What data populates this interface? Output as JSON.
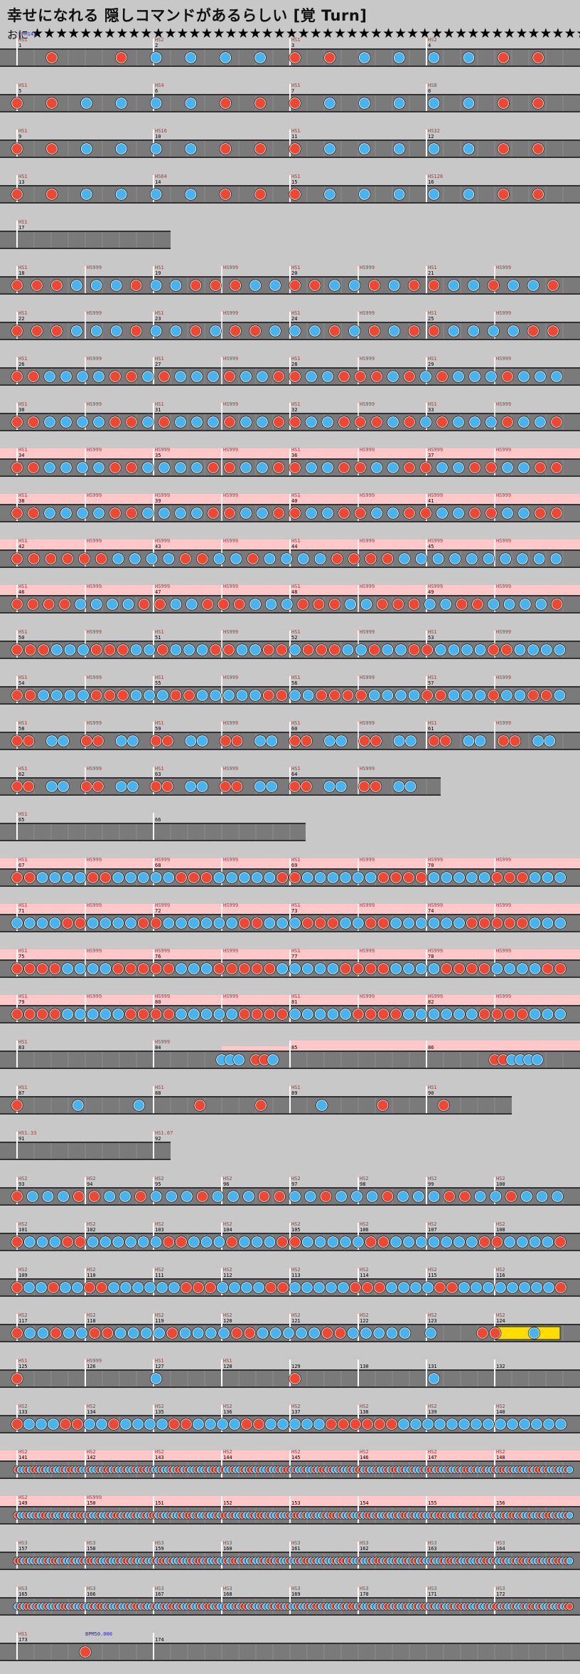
{
  "header": {
    "title": "幸せになれる 隠しコマンドがあるらしい [覚 Turn]",
    "difficulty_label": "おに",
    "stars": "★★★★★★★★★★★★★★★★★★★★★★★★★★★★★★★★★★★★★★★★★★★★★★★★★★★★★★★"
  },
  "colors": {
    "background": "#c8c8c8",
    "lane": "#7a7a7a",
    "gogo_band": "#ffc8c8",
    "don": "#f04632",
    "ka": "#46b4f0",
    "bar_line": "#ffffff",
    "scroll_text": "#e02020",
    "bpm_text": "#2020e0",
    "measure_text": "#000000"
  },
  "chart_data": {
    "type": "table",
    "title": "幸せになれる 隠しコマンドがあるらしい [覚 Turn]",
    "difficulty": "おに",
    "bpm_markers": [
      {
        "measure": 1,
        "text": "BPM142"
      },
      {
        "measure": 170,
        "text": "BPM50.000"
      }
    ],
    "rows": [
      {
        "first": 1,
        "measures": [
          1,
          2,
          3,
          4
        ],
        "scroll": [
          "HS1",
          "HS2",
          "HS1",
          "HS2"
        ],
        "pattern": "drdrbbbbrrbbbbrr"
      },
      {
        "first": 5,
        "measures": [
          5,
          6,
          7,
          8
        ],
        "scroll": [
          "HS1",
          "HS4",
          "HS1",
          "HS8"
        ],
        "pattern": "rrbbbbrrrbbbbbrr"
      },
      {
        "first": 9,
        "measures": [
          9,
          10,
          11,
          12
        ],
        "scroll": [
          "HS1",
          "HS16",
          "HS1",
          "HS32"
        ],
        "pattern": "rrbbbbrrrbbbbbrr"
      },
      {
        "first": 13,
        "measures": [
          13,
          14,
          15,
          16
        ],
        "scroll": [
          "HS1",
          "HS64",
          "HS1",
          "HS128"
        ],
        "pattern": "rrbbbbrrrbbbbbrr"
      },
      {
        "first": 17,
        "measures": [
          17
        ],
        "scroll": [
          "HS1"
        ],
        "pattern": "",
        "short": true
      },
      {
        "first": 18,
        "measures": [
          18,
          19,
          20,
          21
        ],
        "scroll": [
          "HS1",
          "HS1",
          "HS1",
          "HS1"
        ],
        "pattern": "rrrbbbrbbrrrbbrrbbrbrrbbrbbr",
        "dense": 2
      },
      {
        "first": 22,
        "measures": [
          22,
          23,
          24,
          25
        ],
        "scroll": [
          "HS1",
          "HS1",
          "HS1",
          "HS1"
        ],
        "pattern": "rrrbbbrbbrbrrbbbrbrbrrbbbbrr",
        "dense": 2
      },
      {
        "first": 26,
        "measures": [
          26,
          27,
          28,
          29
        ],
        "scroll": [
          "HS1",
          "HS1",
          "HS1",
          "HS1"
        ],
        "pattern": "rrbbbbrrbrbbbrbbrrbbrrrbrbrbbbrbbb",
        "dense": 3
      },
      {
        "first": 30,
        "measures": [
          30,
          31,
          32,
          33
        ],
        "scroll": [
          "HS1",
          "HS1",
          "HS1",
          "HS1"
        ],
        "pattern": "rrbbbbrrbrbbbrbbrrbbrrrbrbrbbbrbbr",
        "dense": 3
      },
      {
        "first": 34,
        "measures": [
          34,
          35,
          36,
          37
        ],
        "scroll": [
          "HS1",
          "HS999",
          "HS1",
          "HS999"
        ],
        "pattern": "rrbbbbrrbbbbrrbbrrbbrrbbrrbbrrbbrr",
        "gogo": true,
        "dense": 3
      },
      {
        "first": 38,
        "measures": [
          38,
          39,
          40,
          41
        ],
        "scroll": [
          "HS1",
          "HS999",
          "HS1",
          "HS999"
        ],
        "pattern": "rrbbbbrrbbbbrrbbrrbbrrbbrrbbrrbbrr",
        "gogo": true,
        "dense": 3
      },
      {
        "first": 42,
        "measures": [
          42,
          43,
          44,
          45
        ],
        "scroll": [
          "HS1",
          "HS999",
          "HS1",
          "HS999"
        ],
        "pattern": "rrrrrrbbbbrrbbrbbbbrrrrbbbbbbbbbb",
        "gogo": true,
        "dense": 4
      },
      {
        "first": 46,
        "measures": [
          46,
          47,
          48,
          49
        ],
        "scroll": [
          "HS1",
          "HS999",
          "HS1",
          "HS999"
        ],
        "pattern": "rrrrbbbbrrbbrrrbbbrrrbbrrrbbrrbbbbr",
        "gogo": true,
        "dense": 4
      },
      {
        "first": 50,
        "measures": [
          50,
          51,
          52,
          53
        ],
        "scroll": [
          "HS1",
          "HS1",
          "HS1",
          "HS1"
        ],
        "pattern": "rrrbbbrrrbbrbbbrrbbrrbrrrbbrbbrrbbbbrrbbbb",
        "dense": 5
      },
      {
        "first": 54,
        "measures": [
          54,
          55,
          56,
          57
        ],
        "scroll": [
          "HS1",
          "HS1",
          "HS1",
          "HS1"
        ],
        "pattern": "rrbbbbrrrbbbrrbbbbbrrbbrrrrbbbbrrbbbrbbrrb",
        "dense": 5
      },
      {
        "first": 58,
        "measures": [
          58,
          59,
          60,
          61
        ],
        "scroll": [
          "HS1",
          "HS1",
          "HS1",
          "HS1"
        ],
        "pattern": "rr.bb.rr.bb.rr.bb.rr.bb.rr.bb.rr.bb.rr.bb.rr.bb.",
        "dense": 5
      },
      {
        "first": 62,
        "measures": [
          62,
          63,
          64
        ],
        "scroll": [
          "HS1",
          "HS1",
          "HS1"
        ],
        "pattern": "rr.bb.rr.bb.rr.bb.rr.bb.rr.bb.rr.bb.",
        "dense": 5,
        "width": 620
      },
      {
        "first": 65,
        "measures": [
          65,
          66
        ],
        "scroll": [
          "HS1"
        ],
        "pattern": "",
        "width": 430
      },
      {
        "first": 67,
        "measures": [
          67,
          68,
          69,
          70
        ],
        "scroll": [
          "HS1",
          "HS999",
          "HS1",
          "HS999"
        ],
        "pattern": "rrbbbbrrbbbbbrrrbbbbbrrbbbbbbrrrrbbbbbrrrbbb",
        "gogo": true,
        "dense": 6
      },
      {
        "first": 71,
        "measures": [
          71,
          72,
          73,
          74
        ],
        "scroll": [
          "HS1",
          "HS999",
          "HS1",
          "HS999"
        ],
        "pattern": "bbbbrrbbbbrrbbbbbbrrbbbrrrbbrrbbbbbbrrrrrbbb",
        "gogo": true,
        "dense": 6
      },
      {
        "first": 75,
        "measures": [
          75,
          76,
          77,
          78
        ],
        "scroll": [
          "HS1",
          "HS999",
          "HS1",
          "HS999"
        ],
        "pattern": "rrrrbbbbrrrrrbbbrrrrrbbbbbrrrrbbbbrrrrbbbbrr",
        "gogo": true,
        "dense": 6
      },
      {
        "first": 79,
        "measures": [
          79,
          80,
          81,
          82
        ],
        "scroll": [
          "HS1",
          "HS999",
          "HS1",
          "HS999"
        ],
        "pattern": "rrrrbbbbbrrrrbbbbbrrrrbbbbbrrrrbbbbbbrrrrbbb",
        "gogo": true,
        "dense": 6
      },
      {
        "first": 83,
        "measures": [
          83,
          84,
          85,
          86
        ],
        "scroll": [
          "HS1",
          "HS999"
        ],
        "pattern": "special83",
        "gogo_partial": true
      },
      {
        "first": 87,
        "measures": [
          87,
          88,
          89,
          90
        ],
        "scroll": [
          "HS1",
          "HS1",
          "HS1",
          "HS1"
        ],
        "pattern": "r.b.b.r.r.b.r.r.",
        "width": 720
      },
      {
        "first": 91,
        "measures": [
          91,
          92
        ],
        "scroll": [
          "HS1.33",
          "HS1.67"
        ],
        "pattern": "",
        "short": true
      },
      {
        "first": 93,
        "measures": [
          93,
          94,
          95,
          96,
          97,
          98,
          99,
          100
        ],
        "scroll": [
          "HS2",
          "HS2",
          "HS2",
          "HS2",
          "HS2",
          "HS2",
          "HS2",
          "HS2"
        ],
        "pattern": "rbbbrrbbrbbbrbbbrrbbrbbbrbbbrrbbrbbb",
        "dense": 4
      },
      {
        "first": 101,
        "measures": [
          101,
          102,
          103,
          104,
          105,
          106,
          107,
          108
        ],
        "scroll": [
          "HS2",
          "HS2",
          "HS2",
          "HS2",
          "HS2",
          "HS2",
          "HS2",
          "HS2"
        ],
        "pattern": "rbbbrrbbbbbbrrbbbrbbbrrbbbbbrrbbbbbbbrrbbbbr",
        "dense": 5
      },
      {
        "first": 109,
        "measures": [
          109,
          110,
          111,
          112,
          113,
          114,
          115,
          116
        ],
        "scroll": [
          "HS2",
          "HS2",
          "HS2",
          "HS2",
          "HS2",
          "HS2",
          "HS2",
          "HS2"
        ],
        "pattern": "rbbrbbrrbbbbbbrrrbbbbrrbbbbbrrrbbbbrrbbbbbbbbr",
        "dense": 5
      },
      {
        "first": 117,
        "measures": [
          117,
          118,
          119,
          120,
          121,
          122,
          123,
          124
        ],
        "scroll": [
          "HS2",
          "HS2",
          "HS2",
          "HS2",
          "HS2",
          "HS2",
          "HS2",
          "HS2"
        ],
        "pattern": "special117",
        "dense": 5
      },
      {
        "first": 125,
        "measures": [
          125,
          126,
          127,
          128,
          129,
          130,
          131,
          132
        ],
        "scroll": [
          "HS1",
          "HS999",
          "HS1",
          "HS1"
        ],
        "pattern": "r...b...r...b..."
      },
      {
        "first": 133,
        "measures": [
          133,
          134,
          135,
          136,
          137,
          138,
          139,
          140
        ],
        "scroll": [
          "HS2",
          "HS2",
          "HS2",
          "HS2",
          "HS2",
          "HS2",
          "HS2",
          "HS2"
        ],
        "pattern": "rbbbrrbbrbbbbrrbbbbrrbbbbbrrrrrrbbbbbbbbbbbbbb",
        "dense": 6
      },
      {
        "first": 141,
        "measures": [
          141,
          142,
          143,
          144,
          145,
          146,
          147,
          148
        ],
        "scroll": [
          "HS2",
          "HS2",
          "HS2",
          "HS2",
          "HS2",
          "HS2",
          "HS2",
          "HS2"
        ],
        "pattern": "long1",
        "gogo": true,
        "dense": 7
      },
      {
        "first": 149,
        "measures": [
          149,
          150,
          151,
          152,
          153,
          154,
          155,
          156
        ],
        "scroll": [
          "HS2",
          "HS999"
        ],
        "pattern": "long2",
        "gogo": true,
        "dense": 8
      },
      {
        "first": 157,
        "measures": [
          157,
          158,
          159,
          160,
          161,
          162,
          163,
          164
        ],
        "scroll": [
          "HS3",
          "HS3",
          "HS3",
          "HS3",
          "HS3",
          "HS3",
          "HS3",
          "HS3"
        ],
        "pattern": "long3",
        "dense": 9
      },
      {
        "first": 165,
        "measures": [
          165,
          166,
          167,
          168,
          169,
          170,
          171,
          172
        ],
        "scroll": [
          "HS3",
          "HS3",
          "HS3",
          "HS3",
          "HS3",
          "HS3",
          "HS3",
          "HS3"
        ],
        "pattern": "long4",
        "dense": 9
      },
      {
        "first": 173,
        "measures": [
          173,
          174
        ],
        "scroll": [
          "HS1"
        ],
        "pattern": "end"
      }
    ]
  }
}
